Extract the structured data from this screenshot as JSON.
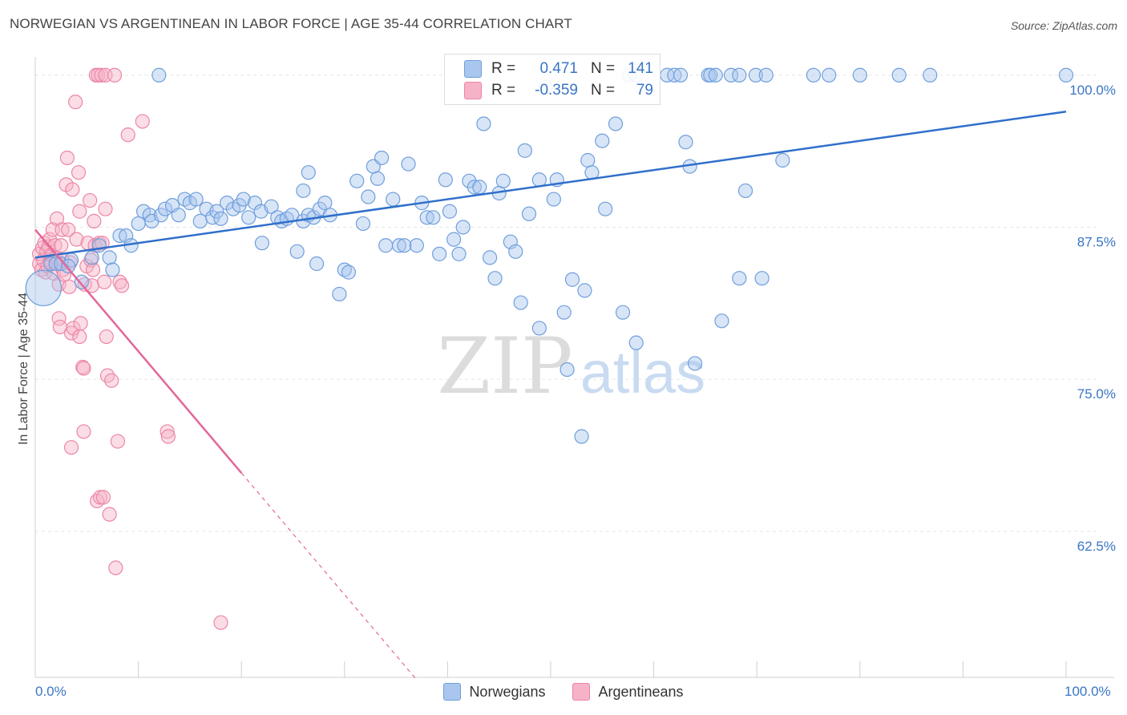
{
  "header": {
    "title": "NORWEGIAN VS ARGENTINEAN IN LABOR FORCE | AGE 35-44 CORRELATION CHART",
    "source": "Source: ZipAtlas.com"
  },
  "watermark": {
    "zip": "ZIP",
    "atlas": "atlas"
  },
  "legend": {
    "norwegians": {
      "r_key": "R =",
      "r_value": "0.471",
      "n_key": "N =",
      "n_value": "141"
    },
    "argentineans": {
      "r_key": "R =",
      "r_value": "-0.359",
      "n_key": "N =",
      "n_value": "79"
    }
  },
  "chart_data": {
    "type": "scatter",
    "title": "NORWEGIAN VS ARGENTINEAN IN LABOR FORCE | AGE 35-44 CORRELATION CHART",
    "xlabel": "",
    "ylabel": "In Labor Force | Age 35-44",
    "xlim": [
      0,
      100
    ],
    "ylim": [
      50.5,
      101.5
    ],
    "x_tick_labels": [
      "0.0%",
      "100.0%"
    ],
    "y_ticks": [
      100,
      87.5,
      75,
      62.5
    ],
    "y_tick_labels": [
      "100.0%",
      "87.5%",
      "75.0%",
      "62.5%"
    ],
    "grid": true,
    "colors": {
      "norwegians_fill": "#a9c6ee",
      "norwegians_stroke": "#6f9fdc",
      "norwegians_line": "#2f6fcb",
      "argentineans_fill": "#f6b3c8",
      "argentineans_stroke": "#ec86a6",
      "argentineans_line": "#e2679a",
      "axis_label": "#3a76c4"
    },
    "series": [
      {
        "name": "Norwegians",
        "r": 0.471,
        "n": 141,
        "trend": {
          "x0": 0,
          "y0": 85.0,
          "x1": 100,
          "y1": 97.0
        },
        "points": [
          [
            0.8,
            82.5,
            2.6
          ],
          [
            1.5,
            84.5,
            1
          ],
          [
            2.0,
            84.5,
            1
          ],
          [
            2.5,
            84.5,
            1
          ],
          [
            3.5,
            84.8,
            1
          ],
          [
            3.2,
            84.3,
            1
          ],
          [
            4.5,
            83.0,
            1
          ],
          [
            5.5,
            85.0,
            1
          ],
          [
            6.2,
            86.0,
            1
          ],
          [
            7.2,
            85.0,
            1
          ],
          [
            7.5,
            84.0,
            1
          ],
          [
            8.2,
            86.8,
            1
          ],
          [
            8.8,
            86.8,
            1
          ],
          [
            9.3,
            86.0,
            1
          ],
          [
            10.0,
            87.8,
            1
          ],
          [
            10.5,
            88.8,
            1
          ],
          [
            11.1,
            88.5,
            1
          ],
          [
            11.3,
            88.0,
            1
          ],
          [
            12.2,
            88.5,
            1
          ],
          [
            12.6,
            89.0,
            1
          ],
          [
            13.3,
            89.3,
            1
          ],
          [
            13.9,
            88.5,
            1
          ],
          [
            14.5,
            89.8,
            1
          ],
          [
            15.0,
            89.5,
            1
          ],
          [
            15.6,
            89.8,
            1
          ],
          [
            16.0,
            88.0,
            1
          ],
          [
            16.6,
            89.0,
            1
          ],
          [
            17.2,
            88.3,
            1
          ],
          [
            17.6,
            88.8,
            1
          ],
          [
            18.0,
            88.2,
            1
          ],
          [
            18.6,
            89.5,
            1
          ],
          [
            19.2,
            89.0,
            1
          ],
          [
            19.8,
            89.3,
            1
          ],
          [
            20.2,
            89.8,
            1
          ],
          [
            20.7,
            88.3,
            1
          ],
          [
            21.3,
            89.5,
            1
          ],
          [
            21.9,
            88.8,
            1
          ],
          [
            22.0,
            86.2,
            1
          ],
          [
            22.9,
            89.2,
            1
          ],
          [
            23.5,
            88.3,
            1
          ],
          [
            23.9,
            88.0,
            1
          ],
          [
            24.4,
            88.2,
            1
          ],
          [
            24.9,
            88.5,
            1
          ],
          [
            25.4,
            85.5,
            1
          ],
          [
            26.0,
            88.0,
            1
          ],
          [
            26.5,
            88.5,
            1
          ],
          [
            27.0,
            88.3,
            1
          ],
          [
            27.6,
            89.0,
            1
          ],
          [
            28.1,
            89.5,
            1
          ],
          [
            28.6,
            88.5,
            1
          ],
          [
            26.0,
            90.5,
            1
          ],
          [
            26.5,
            92.0,
            1
          ],
          [
            27.3,
            84.5,
            1
          ],
          [
            29.5,
            82.0,
            1
          ],
          [
            30.0,
            84.0,
            1
          ],
          [
            30.4,
            83.8,
            1
          ],
          [
            31.2,
            91.3,
            1
          ],
          [
            31.8,
            87.8,
            1
          ],
          [
            32.3,
            90.0,
            1
          ],
          [
            32.8,
            92.5,
            1
          ],
          [
            33.2,
            91.5,
            1
          ],
          [
            33.6,
            93.2,
            1
          ],
          [
            34.0,
            86.0,
            1
          ],
          [
            34.7,
            89.8,
            1
          ],
          [
            35.3,
            86.0,
            1
          ],
          [
            35.8,
            86.0,
            1
          ],
          [
            36.2,
            92.7,
            1
          ],
          [
            37.0,
            86.0,
            1
          ],
          [
            37.5,
            89.5,
            1
          ],
          [
            38.0,
            88.3,
            1
          ],
          [
            38.6,
            88.3,
            1
          ],
          [
            39.2,
            85.3,
            1
          ],
          [
            39.8,
            91.4,
            1
          ],
          [
            40.2,
            88.8,
            1
          ],
          [
            40.6,
            86.5,
            1
          ],
          [
            41.1,
            85.3,
            1
          ],
          [
            41.5,
            87.5,
            1
          ],
          [
            42.1,
            91.3,
            1
          ],
          [
            42.6,
            90.8,
            1
          ],
          [
            43.1,
            90.8,
            1
          ],
          [
            43.5,
            96.0,
            1
          ],
          [
            44.1,
            85.0,
            1
          ],
          [
            44.6,
            83.3,
            1
          ],
          [
            45.0,
            90.3,
            1
          ],
          [
            45.4,
            91.3,
            1
          ],
          [
            46.1,
            86.3,
            1
          ],
          [
            46.6,
            85.5,
            1
          ],
          [
            47.1,
            81.3,
            1
          ],
          [
            47.5,
            93.8,
            1
          ],
          [
            47.9,
            88.6,
            1
          ],
          [
            48.9,
            79.2,
            1
          ],
          [
            48.9,
            91.4,
            1
          ],
          [
            49.5,
            99.0,
            1
          ],
          [
            50.3,
            89.8,
            1
          ],
          [
            50.6,
            91.4,
            1
          ],
          [
            51.3,
            80.5,
            1
          ],
          [
            51.6,
            75.8,
            1
          ],
          [
            52.1,
            83.2,
            1
          ],
          [
            53.0,
            70.3,
            1
          ],
          [
            53.3,
            82.3,
            1
          ],
          [
            53.6,
            93.0,
            1
          ],
          [
            54.0,
            92.0,
            1
          ],
          [
            55.0,
            94.6,
            1
          ],
          [
            55.3,
            89.0,
            1
          ],
          [
            56.3,
            96.0,
            1
          ],
          [
            57.0,
            80.5,
            1
          ],
          [
            57.6,
            100.0,
            1
          ],
          [
            58.3,
            100.0,
            1
          ],
          [
            58.3,
            78.0,
            1
          ],
          [
            61.3,
            100.0,
            1
          ],
          [
            62.0,
            100.0,
            1
          ],
          [
            62.6,
            100.0,
            1
          ],
          [
            63.1,
            94.5,
            1
          ],
          [
            63.5,
            92.5,
            1
          ],
          [
            64.0,
            76.3,
            1
          ],
          [
            65.3,
            100.0,
            1
          ],
          [
            65.5,
            100.0,
            1
          ],
          [
            66.0,
            100.0,
            1
          ],
          [
            66.6,
            79.8,
            1
          ],
          [
            67.5,
            100.0,
            1
          ],
          [
            68.3,
            100.0,
            1
          ],
          [
            68.3,
            83.3,
            1
          ],
          [
            68.9,
            90.5,
            1
          ],
          [
            69.9,
            100.0,
            1
          ],
          [
            70.5,
            83.3,
            1
          ],
          [
            70.9,
            100.0,
            1
          ],
          [
            72.5,
            93.0,
            1
          ],
          [
            75.5,
            100.0,
            1
          ],
          [
            77.0,
            100.0,
            1
          ],
          [
            80.0,
            100.0,
            1
          ],
          [
            83.8,
            100.0,
            1
          ],
          [
            86.8,
            100.0,
            1
          ],
          [
            100.0,
            100.0,
            1
          ],
          [
            12.0,
            100.0,
            1
          ]
        ]
      },
      {
        "name": "Argentineans",
        "r": -0.359,
        "n": 79,
        "trend": {
          "x0": 0,
          "y0": 87.3,
          "x1": 20,
          "y1": 67.3
        },
        "trend_dashed": {
          "x0": 20,
          "y0": 67.3,
          "x1": 37,
          "y1": 50.3
        },
        "points": [
          [
            0.4,
            84.5,
            1
          ],
          [
            0.4,
            85.3,
            1
          ],
          [
            0.6,
            84.0,
            1
          ],
          [
            0.7,
            85.8,
            1
          ],
          [
            0.8,
            84.8,
            1
          ],
          [
            0.9,
            86.2,
            1
          ],
          [
            1.0,
            83.8,
            1
          ],
          [
            1.1,
            85.5,
            1
          ],
          [
            1.2,
            84.3,
            1
          ],
          [
            1.3,
            85.9,
            1
          ],
          [
            1.4,
            86.5,
            1
          ],
          [
            1.5,
            84.6,
            1
          ],
          [
            1.6,
            85.2,
            1
          ],
          [
            1.7,
            87.3,
            1
          ],
          [
            1.8,
            83.7,
            1
          ],
          [
            1.9,
            86.0,
            1
          ],
          [
            2.0,
            85.0,
            1
          ],
          [
            2.1,
            88.2,
            1
          ],
          [
            2.2,
            84.5,
            1
          ],
          [
            2.3,
            82.8,
            1
          ],
          [
            2.3,
            80.0,
            1
          ],
          [
            2.4,
            79.3,
            1
          ],
          [
            2.5,
            86.0,
            1
          ],
          [
            2.6,
            87.3,
            1
          ],
          [
            2.7,
            84.0,
            1
          ],
          [
            2.8,
            83.6,
            1
          ],
          [
            3.0,
            91.0,
            1
          ],
          [
            3.1,
            93.2,
            1
          ],
          [
            3.2,
            87.3,
            1
          ],
          [
            3.3,
            82.6,
            1
          ],
          [
            3.4,
            84.6,
            1
          ],
          [
            3.5,
            78.8,
            1
          ],
          [
            3.6,
            90.6,
            1
          ],
          [
            3.7,
            79.2,
            1
          ],
          [
            3.9,
            97.8,
            1
          ],
          [
            4.0,
            86.5,
            1
          ],
          [
            4.2,
            92.0,
            1
          ],
          [
            4.3,
            78.5,
            1
          ],
          [
            4.3,
            88.8,
            1
          ],
          [
            4.4,
            79.6,
            1
          ],
          [
            4.6,
            76.0,
            1
          ],
          [
            4.7,
            75.9,
            1
          ],
          [
            4.7,
            70.7,
            1
          ],
          [
            4.8,
            82.8,
            1
          ],
          [
            5.0,
            84.3,
            1
          ],
          [
            5.1,
            86.2,
            1
          ],
          [
            5.3,
            89.7,
            1
          ],
          [
            5.4,
            84.8,
            1
          ],
          [
            5.5,
            82.7,
            1
          ],
          [
            5.6,
            84.0,
            1
          ],
          [
            5.7,
            88.0,
            1
          ],
          [
            5.8,
            86.0,
            1
          ],
          [
            5.9,
            100.0,
            1
          ],
          [
            6.0,
            65.0,
            1
          ],
          [
            6.1,
            100.0,
            1
          ],
          [
            6.2,
            86.2,
            1
          ],
          [
            6.3,
            65.3,
            1
          ],
          [
            6.4,
            100.0,
            1
          ],
          [
            6.5,
            86.2,
            1
          ],
          [
            6.6,
            65.3,
            1
          ],
          [
            6.7,
            83.0,
            1
          ],
          [
            6.8,
            100.0,
            1
          ],
          [
            6.8,
            89.0,
            1
          ],
          [
            6.9,
            78.5,
            1
          ],
          [
            7.0,
            75.3,
            1
          ],
          [
            7.2,
            63.9,
            1
          ],
          [
            7.4,
            74.9,
            1
          ],
          [
            7.7,
            100.0,
            1
          ],
          [
            7.8,
            59.5,
            1
          ],
          [
            8.0,
            69.9,
            1
          ],
          [
            8.2,
            83.0,
            1
          ],
          [
            8.4,
            82.7,
            1
          ],
          [
            9.0,
            95.1,
            1
          ],
          [
            10.4,
            96.2,
            1
          ],
          [
            12.8,
            70.7,
            1
          ],
          [
            12.9,
            70.3,
            1
          ],
          [
            18.0,
            55.0,
            1
          ],
          [
            3.5,
            69.4,
            1
          ],
          [
            2.6,
            84.8,
            1
          ]
        ]
      }
    ]
  },
  "bottom_legend": {
    "norwegians": "Norwegians",
    "argentineans": "Argentineans"
  }
}
